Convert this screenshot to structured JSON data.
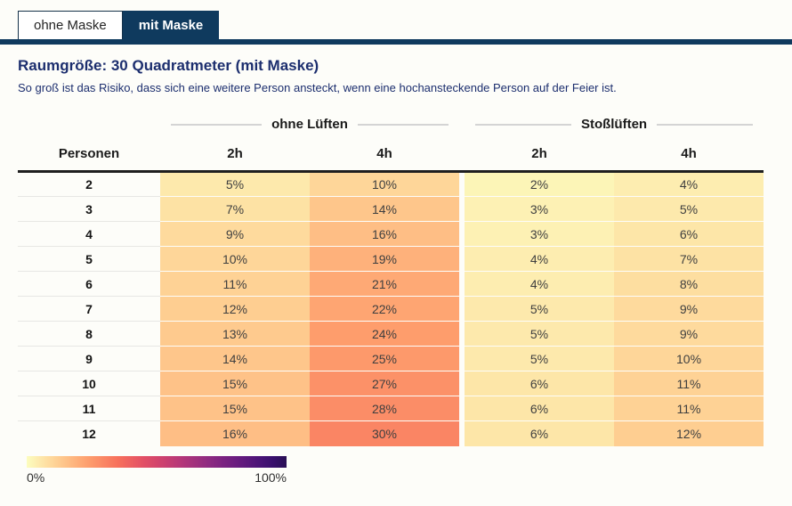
{
  "tab_bar": {
    "tabs": [
      {
        "label": "ohne Maske",
        "active": false
      },
      {
        "label": "mit Maske",
        "active": true
      }
    ]
  },
  "header": {
    "title": "Raumgröße: 30 Quadratmeter (mit Maske)",
    "subtitle": "So groß ist das Risiko, dass sich eine weitere Person ansteckt, wenn eine hochansteckende Person auf der Feier ist."
  },
  "table": {
    "person_header": "Personen",
    "groups": [
      {
        "label": "ohne Lüften"
      },
      {
        "label": "Stoßlüften"
      }
    ],
    "sub_columns": [
      "2h",
      "4h",
      "2h",
      "4h"
    ]
  },
  "legend": {
    "min_label": "0%",
    "max_label": "100%"
  },
  "colors": {
    "accent_navy": "#0f3a5e",
    "title_navy": "#1c2e6e",
    "header_text": "#1a1a1a",
    "cell_text": "#3f3f3f",
    "rule_dark": "#1f1f1f",
    "rule_light": "#d4d4d4",
    "page_bg": "#fdfdf9",
    "colormap_stops": [
      "#000004",
      "#140e36",
      "#3b0f70",
      "#641a80",
      "#8c2981",
      "#b73779",
      "#de4968",
      "#f7705c",
      "#fe9f6d",
      "#fecf92",
      "#fcfdbf"
    ],
    "scale_span": 0.85
  },
  "chart_data": {
    "type": "heatmap",
    "title": "Raumgröße: 30 Quadratmeter (mit Maske)",
    "subtitle": "So groß ist das Risiko, dass sich eine weitere Person ansteckt, wenn eine hochansteckende Person auf der Feier ist.",
    "row_axis_label": "Personen",
    "column_groups": [
      "ohne Lüften",
      "Stoßlüften"
    ],
    "columns": [
      {
        "group": "ohne Lüften",
        "duration": "2h"
      },
      {
        "group": "ohne Lüften",
        "duration": "4h"
      },
      {
        "group": "Stoßlüften",
        "duration": "2h"
      },
      {
        "group": "Stoßlüften",
        "duration": "4h"
      }
    ],
    "rows": [
      2,
      3,
      4,
      5,
      6,
      7,
      8,
      9,
      10,
      11,
      12
    ],
    "values_percent": [
      [
        5,
        10,
        2,
        4
      ],
      [
        7,
        14,
        3,
        5
      ],
      [
        9,
        16,
        3,
        6
      ],
      [
        10,
        19,
        4,
        7
      ],
      [
        11,
        21,
        4,
        8
      ],
      [
        12,
        22,
        5,
        9
      ],
      [
        13,
        24,
        5,
        9
      ],
      [
        14,
        25,
        5,
        10
      ],
      [
        15,
        27,
        6,
        11
      ],
      [
        15,
        28,
        6,
        11
      ],
      [
        16,
        30,
        6,
        12
      ]
    ],
    "value_suffix": "%",
    "legend": {
      "min": 0,
      "max": 100,
      "scale": "sequential yellow-orange-red-purple (magma reversed)"
    }
  }
}
